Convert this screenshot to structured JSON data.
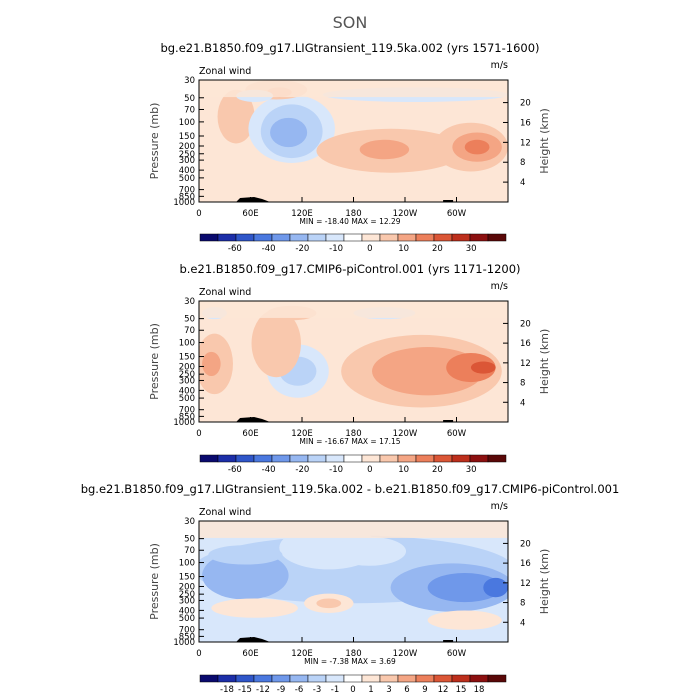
{
  "figure_title": "SON",
  "chart_data": [
    {
      "type": "heatmap",
      "title": "bg.e21.B1850.f09_g17.LIGtransient_119.5ka.002 (yrs 1571-1600)",
      "field_label": "Zonal wind",
      "units": "m/s",
      "ylabel": "Pressure (mb)",
      "ylabel_right": "Height (km)",
      "x_ticks": [
        "0",
        "60E",
        "120E",
        "180",
        "120W",
        "60W"
      ],
      "y_ticks": [
        "30",
        "50",
        "70",
        "100",
        "150",
        "200",
        "250",
        "300",
        "400",
        "500",
        "700",
        "850",
        "1000"
      ],
      "height_ticks": [
        "20",
        "16",
        "12",
        "8",
        "4"
      ],
      "min_max_text": "MIN = -18.40   MAX =  12.29",
      "colorbar_levels": [
        -70,
        -60,
        -50,
        -40,
        -30,
        -20,
        -15,
        -10,
        -5,
        0,
        5,
        10,
        15,
        20,
        25,
        30,
        35
      ],
      "colorbar_labels": [
        "-60",
        "-40",
        "-20",
        "-10",
        "0",
        "10",
        "20",
        "30"
      ]
    },
    {
      "type": "heatmap",
      "title": "b.e21.B1850.f09_g17.CMIP6-piControl.001 (yrs 1171-1200)",
      "field_label": "Zonal wind",
      "units": "m/s",
      "ylabel": "Pressure (mb)",
      "ylabel_right": "Height (km)",
      "x_ticks": [
        "0",
        "60E",
        "120E",
        "180",
        "120W",
        "60W"
      ],
      "y_ticks": [
        "30",
        "50",
        "70",
        "100",
        "150",
        "200",
        "250",
        "300",
        "400",
        "500",
        "700",
        "850",
        "1000"
      ],
      "height_ticks": [
        "20",
        "16",
        "12",
        "8",
        "4"
      ],
      "min_max_text": "MIN = -16.67   MAX =  17.15",
      "colorbar_levels": [
        -70,
        -60,
        -50,
        -40,
        -30,
        -20,
        -15,
        -10,
        -5,
        0,
        5,
        10,
        15,
        20,
        25,
        30,
        35
      ],
      "colorbar_labels": [
        "-60",
        "-40",
        "-20",
        "-10",
        "0",
        "10",
        "20",
        "30"
      ]
    },
    {
      "type": "heatmap",
      "title": "bg.e21.B1850.f09_g17.LIGtransient_119.5ka.002 - b.e21.B1850.f09_g17.CMIP6-piControl.001",
      "field_label": "Zonal wind",
      "units": "m/s",
      "ylabel": "Pressure (mb)",
      "ylabel_right": "Height (km)",
      "x_ticks": [
        "0",
        "60E",
        "120E",
        "180",
        "120W",
        "60W"
      ],
      "y_ticks": [
        "30",
        "50",
        "70",
        "100",
        "150",
        "200",
        "250",
        "300",
        "400",
        "500",
        "700",
        "850",
        "1000"
      ],
      "height_ticks": [
        "20",
        "16",
        "12",
        "8",
        "4"
      ],
      "min_max_text": "MIN =  -7.38   MAX =   3.69",
      "colorbar_levels": [
        -21,
        -18,
        -15,
        -12,
        -9,
        -6,
        -3,
        -1,
        0,
        1,
        3,
        6,
        9,
        12,
        15,
        18,
        21
      ],
      "colorbar_labels": [
        "-18",
        "-15",
        "-12",
        "-9",
        "-6",
        "-3",
        "-1",
        "0",
        "1",
        "3",
        "6",
        "9",
        "12",
        "15",
        "18"
      ]
    }
  ],
  "colors": {
    "colorbar": [
      "#0a0a6e",
      "#1c2ea8",
      "#2f56c9",
      "#4a78df",
      "#6f98ea",
      "#96b7f1",
      "#bad3f7",
      "#d8e7fb",
      "#ffffff",
      "#fde6d6",
      "#f9c8ad",
      "#f4a584",
      "#ec7f5b",
      "#db5636",
      "#bd2f1c",
      "#8c1010",
      "#5a0808"
    ],
    "background_fill": "#fde6d6",
    "topography": "#000000"
  }
}
